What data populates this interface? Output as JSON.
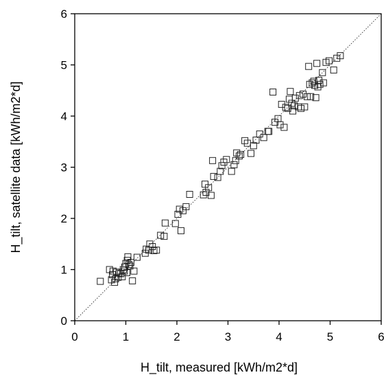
{
  "chart_data": {
    "type": "scatter",
    "xlabel": "H_tilt, measured [kWh/m2*d]",
    "ylabel": "H_tilt, satellite data [kWh/m2*d]",
    "xlim": [
      0,
      6
    ],
    "ylim": [
      0,
      6
    ],
    "xticks": [
      "0",
      "1",
      "2",
      "3",
      "4",
      "5",
      "6"
    ],
    "yticks": [
      "0",
      "1",
      "2",
      "3",
      "4",
      "5",
      "6"
    ],
    "marker": "open-square",
    "reference_line": "y = x (dotted)",
    "grid": false,
    "legend": "none",
    "points": [
      [
        0.5,
        0.77
      ],
      [
        0.68,
        1.0
      ],
      [
        0.72,
        0.8
      ],
      [
        0.74,
        0.9
      ],
      [
        0.75,
        0.97
      ],
      [
        0.78,
        0.75
      ],
      [
        0.8,
        0.82
      ],
      [
        0.82,
        0.95
      ],
      [
        0.85,
        0.85
      ],
      [
        0.87,
        0.93
      ],
      [
        0.9,
        0.92
      ],
      [
        0.93,
        0.86
      ],
      [
        0.95,
        1.0
      ],
      [
        0.97,
        0.97
      ],
      [
        0.98,
        1.05
      ],
      [
        1.0,
        1.12
      ],
      [
        1.02,
        0.94
      ],
      [
        1.03,
        1.18
      ],
      [
        1.04,
        1.25
      ],
      [
        1.06,
        1.1
      ],
      [
        1.08,
        1.07
      ],
      [
        1.1,
        1.14
      ],
      [
        1.13,
        0.78
      ],
      [
        1.16,
        0.97
      ],
      [
        1.22,
        1.24
      ],
      [
        1.38,
        1.32
      ],
      [
        1.4,
        1.4
      ],
      [
        1.45,
        1.38
      ],
      [
        1.47,
        1.5
      ],
      [
        1.52,
        1.45
      ],
      [
        1.55,
        1.37
      ],
      [
        1.6,
        1.38
      ],
      [
        1.68,
        1.67
      ],
      [
        1.75,
        1.65
      ],
      [
        1.77,
        1.91
      ],
      [
        1.97,
        1.9
      ],
      [
        2.02,
        2.08
      ],
      [
        2.05,
        2.18
      ],
      [
        2.08,
        1.76
      ],
      [
        2.12,
        2.15
      ],
      [
        2.18,
        2.23
      ],
      [
        2.25,
        2.47
      ],
      [
        2.52,
        2.46
      ],
      [
        2.55,
        2.67
      ],
      [
        2.57,
        2.51
      ],
      [
        2.62,
        2.6
      ],
      [
        2.67,
        2.45
      ],
      [
        2.7,
        3.13
      ],
      [
        2.72,
        2.82
      ],
      [
        2.8,
        2.8
      ],
      [
        2.85,
        2.92
      ],
      [
        2.88,
        3.03
      ],
      [
        2.92,
        3.1
      ],
      [
        2.97,
        3.15
      ],
      [
        3.07,
        2.92
      ],
      [
        3.12,
        3.05
      ],
      [
        3.15,
        3.13
      ],
      [
        3.17,
        3.28
      ],
      [
        3.22,
        3.22
      ],
      [
        3.25,
        3.25
      ],
      [
        3.33,
        3.52
      ],
      [
        3.38,
        3.47
      ],
      [
        3.45,
        3.27
      ],
      [
        3.5,
        3.42
      ],
      [
        3.55,
        3.53
      ],
      [
        3.62,
        3.65
      ],
      [
        3.7,
        3.58
      ],
      [
        3.78,
        3.7
      ],
      [
        3.8,
        3.7
      ],
      [
        3.88,
        4.47
      ],
      [
        3.92,
        3.88
      ],
      [
        3.98,
        3.95
      ],
      [
        4.02,
        3.83
      ],
      [
        4.05,
        4.23
      ],
      [
        4.1,
        3.78
      ],
      [
        4.13,
        4.17
      ],
      [
        4.17,
        4.15
      ],
      [
        4.2,
        4.33
      ],
      [
        4.22,
        4.48
      ],
      [
        4.25,
        4.25
      ],
      [
        4.27,
        4.1
      ],
      [
        4.3,
        4.2
      ],
      [
        4.32,
        4.35
      ],
      [
        4.38,
        4.18
      ],
      [
        4.4,
        4.4
      ],
      [
        4.43,
        4.15
      ],
      [
        4.47,
        4.43
      ],
      [
        4.5,
        4.18
      ],
      [
        4.55,
        4.38
      ],
      [
        4.58,
        4.97
      ],
      [
        4.6,
        4.62
      ],
      [
        4.62,
        4.38
      ],
      [
        4.65,
        4.65
      ],
      [
        4.68,
        4.68
      ],
      [
        4.7,
        4.6
      ],
      [
        4.72,
        4.36
      ],
      [
        4.74,
        5.03
      ],
      [
        4.76,
        4.57
      ],
      [
        4.78,
        4.7
      ],
      [
        4.8,
        4.62
      ],
      [
        4.85,
        4.85
      ],
      [
        4.87,
        4.65
      ],
      [
        4.92,
        5.05
      ],
      [
        4.98,
        5.08
      ],
      [
        5.07,
        4.9
      ],
      [
        5.13,
        5.13
      ],
      [
        5.2,
        5.18
      ]
    ]
  }
}
